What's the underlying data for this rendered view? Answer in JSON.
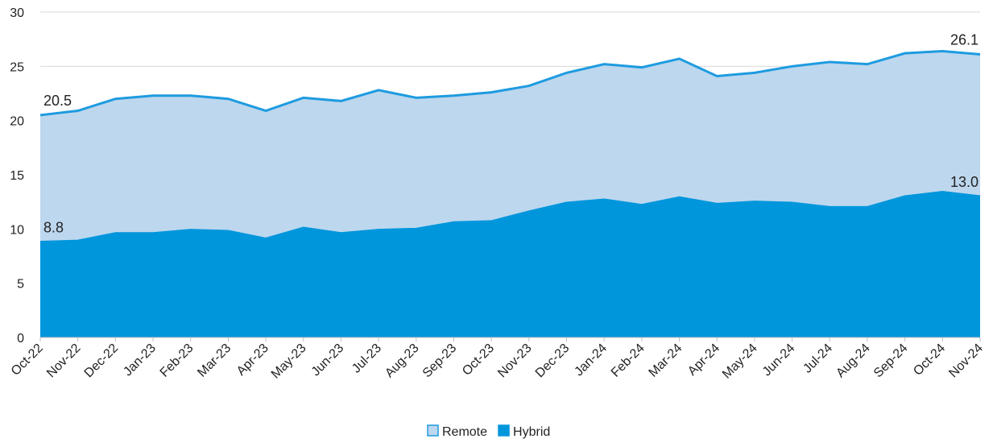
{
  "chart_data": {
    "type": "area",
    "categories": [
      "Oct-22",
      "Nov-22",
      "Dec-22",
      "Jan-23",
      "Feb-23",
      "Mar-23",
      "Apr-23",
      "May-23",
      "Jun-23",
      "Jul-23",
      "Aug-23",
      "Sep-23",
      "Oct-23",
      "Nov-23",
      "Dec-23",
      "Jan-24",
      "Feb-24",
      "Mar-24",
      "Apr-24",
      "May-24",
      "Jun-24",
      "Jul-24",
      "Aug-24",
      "Sep-24",
      "Oct-24",
      "Nov-24"
    ],
    "series": [
      {
        "name": "Remote",
        "color": "#bdd7ee",
        "line_color": "#1e9be0",
        "values": [
          20.5,
          20.9,
          22.0,
          22.3,
          22.3,
          22.0,
          20.9,
          22.1,
          21.8,
          22.8,
          22.1,
          22.3,
          22.6,
          23.2,
          24.4,
          25.2,
          24.9,
          25.7,
          24.1,
          24.4,
          25.0,
          25.4,
          25.2,
          26.2,
          26.4,
          26.1
        ],
        "value_labels": [
          "20.5",
          null,
          null,
          null,
          null,
          null,
          null,
          null,
          null,
          null,
          null,
          null,
          null,
          null,
          null,
          null,
          null,
          null,
          null,
          null,
          null,
          null,
          null,
          null,
          null,
          "26.1"
        ]
      },
      {
        "name": "Hybrid",
        "color": "#0096dc",
        "line_color": "#0096dc",
        "values": [
          8.8,
          8.9,
          9.6,
          9.6,
          9.9,
          9.8,
          9.1,
          10.1,
          9.6,
          9.9,
          10.0,
          10.6,
          10.7,
          11.6,
          12.4,
          12.7,
          12.2,
          12.9,
          12.3,
          12.5,
          12.4,
          12.0,
          12.0,
          13.0,
          13.4,
          13.0
        ],
        "value_labels": [
          "8.8",
          null,
          null,
          null,
          null,
          null,
          null,
          null,
          null,
          null,
          null,
          null,
          null,
          null,
          null,
          null,
          null,
          null,
          null,
          null,
          null,
          null,
          null,
          null,
          null,
          "13.0"
        ]
      }
    ],
    "ylim": [
      0,
      30
    ],
    "yticks": [
      0,
      5,
      10,
      15,
      20,
      25,
      30
    ],
    "grid": true,
    "legend": "bottom"
  }
}
